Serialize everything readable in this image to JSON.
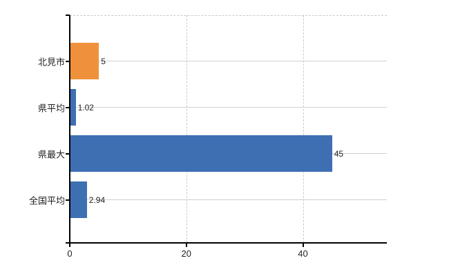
{
  "chart_data": {
    "type": "bar",
    "orientation": "horizontal",
    "categories": [
      "北見市",
      "県平均",
      "県最大",
      "全国平均"
    ],
    "values": [
      5,
      1.02,
      45,
      2.94
    ],
    "value_labels": [
      "5",
      "1.02",
      "45",
      "2.94"
    ],
    "bar_colors": [
      "#ef913b",
      "#3f6fb3",
      "#3f6fb3",
      "#3f6fb3"
    ],
    "highlight_color": "#ef913b",
    "default_bar_color": "#3f6fb3",
    "x_ticks": [
      "0",
      "20",
      "40"
    ],
    "x_tick_values": [
      0,
      20,
      40
    ],
    "xlim": [
      0,
      54.4
    ],
    "grid": {
      "horizontal_solid_per_category": true,
      "vertical_dashed_at": [
        20,
        40
      ],
      "top_boundary_dashed": true
    },
    "axis_color": "#000000",
    "gridline_color": "#ccd3c9",
    "dashed_gridline_color": "#c9c9c9",
    "background_color": "#ffffff",
    "legend": null,
    "xlabel": "",
    "ylabel": ""
  }
}
